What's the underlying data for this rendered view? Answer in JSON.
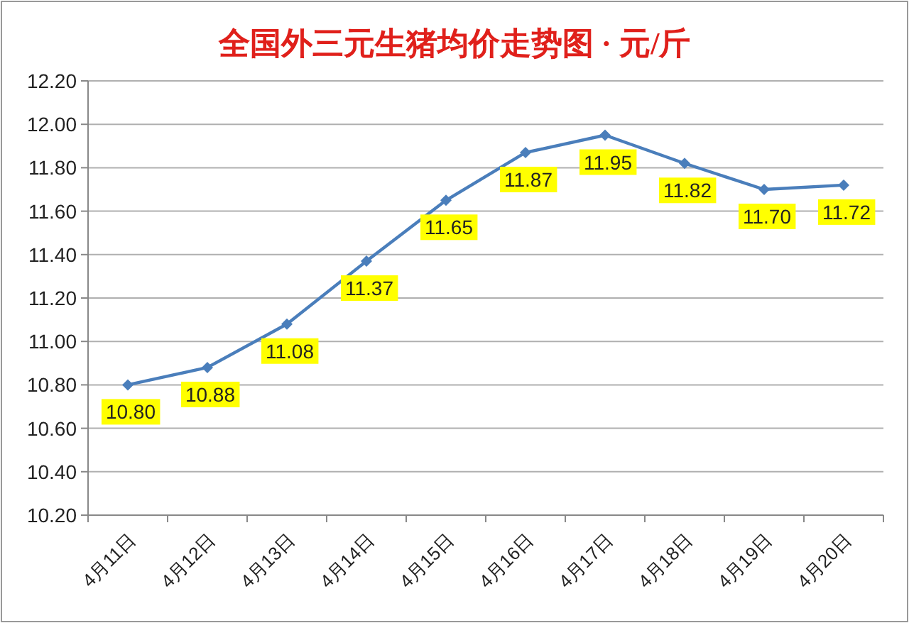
{
  "chart_data": {
    "type": "line",
    "title": "全国外三元生猪均价走势图 · 元/斤",
    "categories": [
      "4月11日",
      "4月12日",
      "4月13日",
      "4月14日",
      "4月15日",
      "4月16日",
      "4月17日",
      "4月18日",
      "4月19日",
      "4月20日"
    ],
    "series": [
      {
        "color": "#4a7ebb",
        "values": [
          10.8,
          10.88,
          11.08,
          11.37,
          11.65,
          11.87,
          11.95,
          11.82,
          11.7,
          11.72
        ],
        "value_labels": [
          "10.80",
          "10.88",
          "11.08",
          "11.37",
          "11.65",
          "11.87",
          "11.95",
          "11.82",
          "11.70",
          "11.72"
        ]
      }
    ],
    "ylim": [
      10.2,
      12.2
    ],
    "yticks": [
      {
        "value": 10.2,
        "label": "10.20"
      },
      {
        "value": 10.4,
        "label": "10.40"
      },
      {
        "value": 10.6,
        "label": "10.60"
      },
      {
        "value": 10.8,
        "label": "10.80"
      },
      {
        "value": 11.0,
        "label": "11.00"
      },
      {
        "value": 11.2,
        "label": "11.20"
      },
      {
        "value": 11.4,
        "label": "11.40"
      },
      {
        "value": 11.6,
        "label": "11.60"
      },
      {
        "value": 11.8,
        "label": "11.80"
      },
      {
        "value": 12.0,
        "label": "12.00"
      },
      {
        "value": 12.2,
        "label": "12.20"
      }
    ],
    "grid": "y",
    "marker": "diamond",
    "line_style": "solid"
  }
}
